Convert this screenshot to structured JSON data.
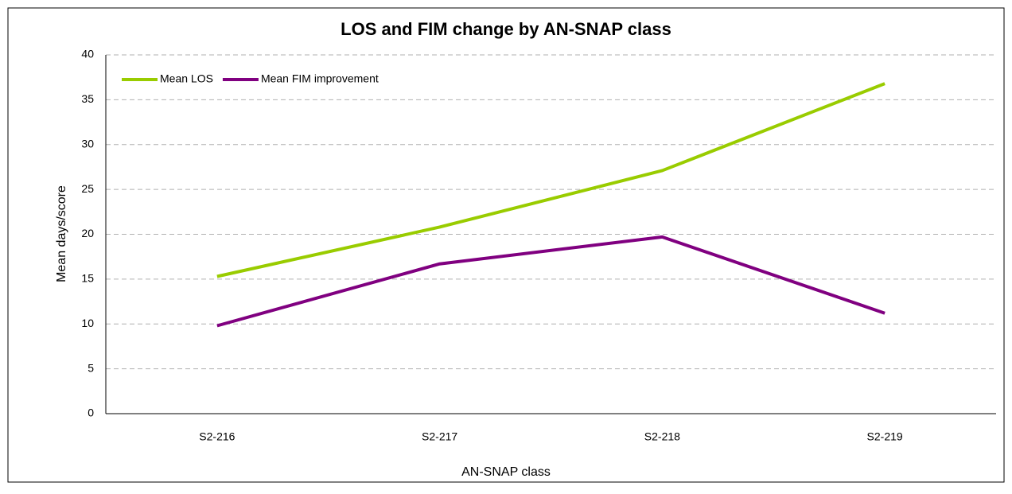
{
  "chart_data": {
    "type": "line",
    "title": "LOS and FIM change by AN-SNAP class",
    "x_label": "AN-SNAP class",
    "y_label": "Mean days/score",
    "categories": [
      "S2-216",
      "S2-217",
      "S2-218",
      "S2-219"
    ],
    "series": [
      {
        "name": "Mean LOS",
        "color": "#99cc00",
        "values": [
          15.3,
          20.8,
          27.1,
          36.8
        ]
      },
      {
        "name": "Mean FIM improvement",
        "color": "#800080",
        "values": [
          9.8,
          16.7,
          19.7,
          11.2
        ]
      }
    ],
    "ylim": [
      0,
      40
    ],
    "yticks": [
      0,
      5,
      10,
      15,
      20,
      25,
      30,
      35,
      40
    ],
    "grid": true,
    "legend": "upper left"
  }
}
